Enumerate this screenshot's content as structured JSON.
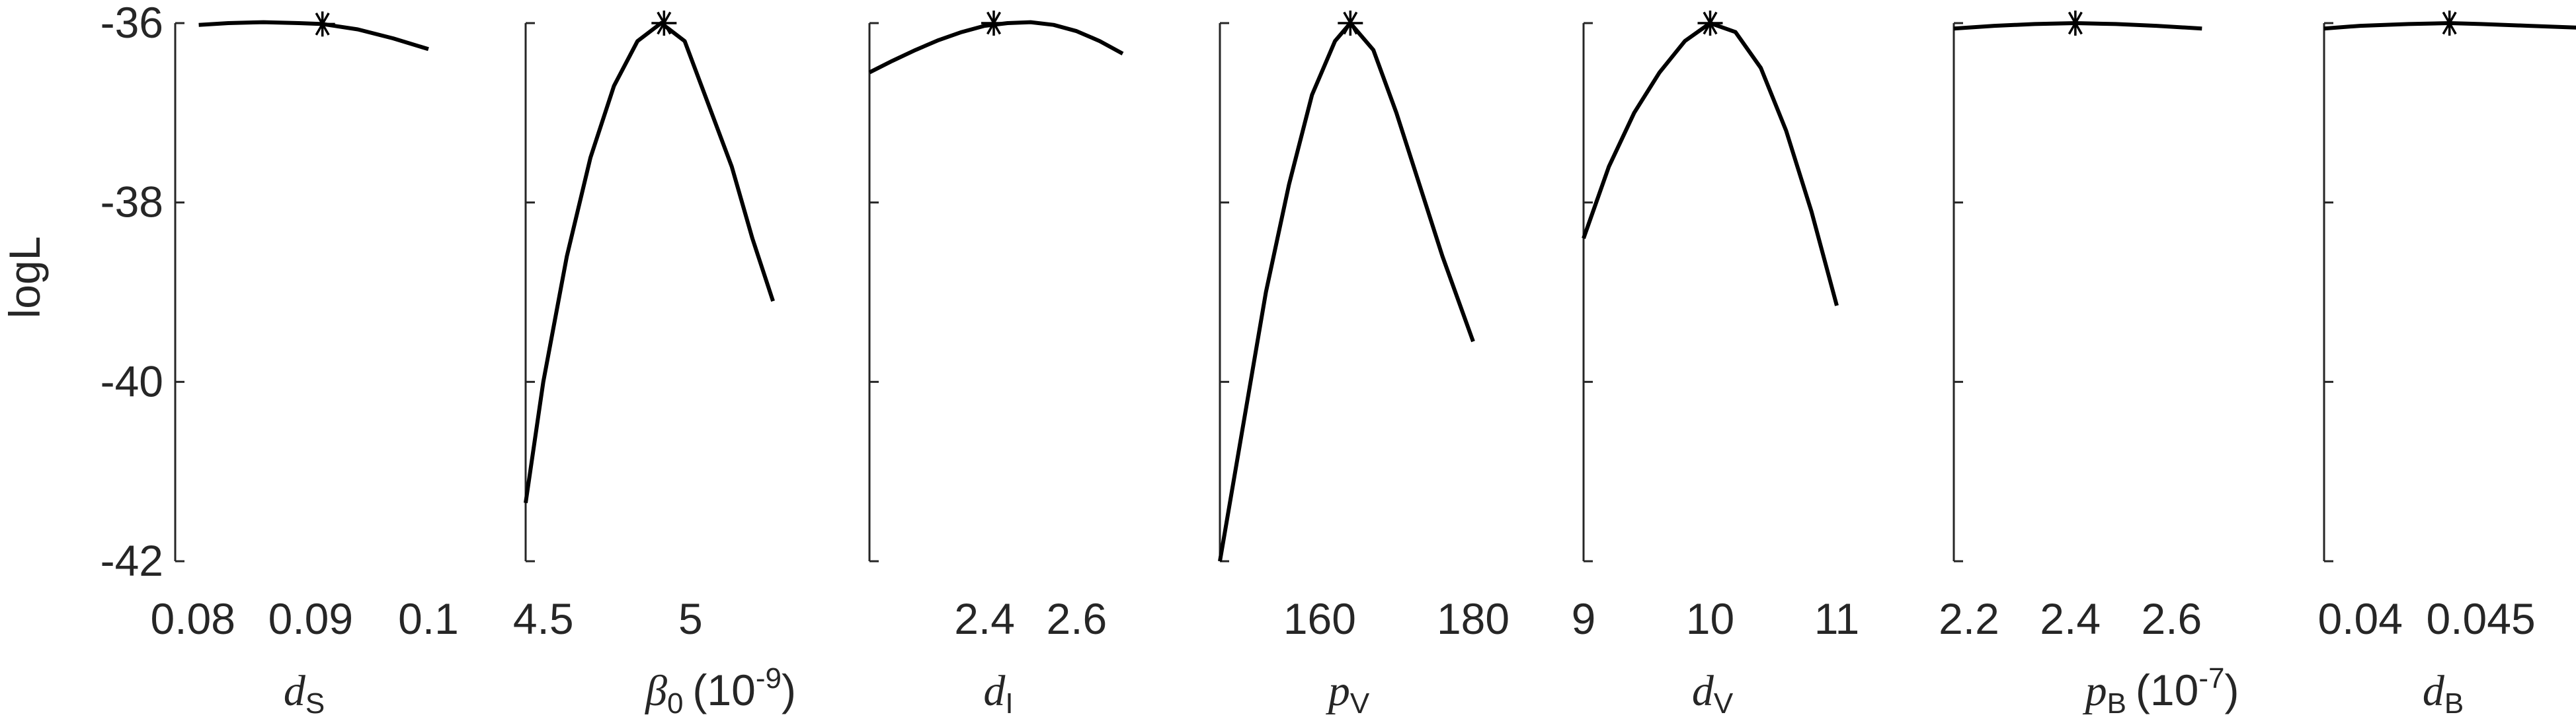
{
  "colors": {
    "line": "#000000",
    "axis": "#262626",
    "background": "#ffffff"
  },
  "chart_data": {
    "type": "line",
    "title": "",
    "ylabel": "logL",
    "ylim": [
      -42,
      -36
    ],
    "yticks": [
      -42,
      -40,
      -38,
      -36
    ],
    "yticklabels": [
      "-42",
      "-40",
      "-38",
      "-36"
    ],
    "panels": [
      {
        "name": "dS",
        "xlabel": {
          "symbol": "d",
          "sub": "S",
          "suffix": "",
          "sup": ""
        },
        "xlim": [
          0.0785,
          0.1
        ],
        "xticks": [
          0.08,
          0.09,
          0.1
        ],
        "xticklabels": [
          "0.08",
          "0.09",
          "0.1"
        ],
        "x": [
          0.0805,
          0.083,
          0.086,
          0.089,
          0.091,
          0.094,
          0.097,
          0.1
        ],
        "y": [
          -36.02,
          -36.0,
          -35.99,
          -36.0,
          -36.01,
          -36.07,
          -36.17,
          -36.29
        ],
        "best": {
          "x": 0.091,
          "y": -36.01
        }
      },
      {
        "name": "beta0",
        "xlabel": {
          "symbol": "β",
          "sub": "0",
          "suffix": "(10",
          "sup": "-9",
          "close": ")"
        },
        "xlim": [
          4.44,
          5.3
        ],
        "xticks": [
          4.5,
          5
        ],
        "xticklabels": [
          "4.5",
          "5"
        ],
        "x": [
          4.44,
          4.5,
          4.58,
          4.66,
          4.74,
          4.82,
          4.9,
          4.98,
          5.06,
          5.14,
          5.21,
          5.28
        ],
        "y": [
          -41.35,
          -40.0,
          -38.6,
          -37.5,
          -36.7,
          -36.2,
          -36.0,
          -36.2,
          -36.9,
          -37.6,
          -38.4,
          -39.1
        ],
        "best": {
          "x": 4.91,
          "y": -36.0
        }
      },
      {
        "name": "dI",
        "xlabel": {
          "symbol": "d",
          "sub": "I",
          "suffix": "",
          "sup": ""
        },
        "xlim": [
          2.15,
          2.7
        ],
        "xticks": [
          2.4,
          2.6
        ],
        "xticklabels": [
          "2.4",
          "2.6"
        ],
        "x": [
          2.15,
          2.2,
          2.25,
          2.3,
          2.35,
          2.4,
          2.45,
          2.5,
          2.55,
          2.6,
          2.65,
          2.7
        ],
        "y": [
          -36.55,
          -36.42,
          -36.3,
          -36.19,
          -36.1,
          -36.03,
          -36.0,
          -35.99,
          -36.02,
          -36.09,
          -36.2,
          -36.34
        ],
        "best": {
          "x": 2.42,
          "y": -36.0
        }
      },
      {
        "name": "pV",
        "xlabel": {
          "symbol": "p",
          "sub": "V",
          "suffix": "",
          "sup": ""
        },
        "xlim": [
          147,
          180
        ],
        "xticks": [
          160,
          180
        ],
        "xticklabels": [
          "160",
          "180"
        ],
        "x": [
          147,
          150,
          153,
          156,
          159,
          162,
          164,
          167,
          170,
          173,
          176,
          180
        ],
        "y": [
          -42.0,
          -40.5,
          -39.0,
          -37.8,
          -36.8,
          -36.2,
          -36.0,
          -36.3,
          -37.0,
          -37.8,
          -38.6,
          -39.55
        ],
        "best": {
          "x": 164,
          "y": -36.0
        }
      },
      {
        "name": "dV",
        "xlabel": {
          "symbol": "d",
          "sub": "V",
          "suffix": "",
          "sup": ""
        },
        "xlim": [
          9,
          11
        ],
        "xticks": [
          9,
          10,
          11
        ],
        "xticklabels": [
          "9",
          "10",
          "11"
        ],
        "x": [
          9.0,
          9.2,
          9.4,
          9.6,
          9.8,
          10.0,
          10.2,
          10.4,
          10.6,
          10.8,
          11.0
        ],
        "y": [
          -38.4,
          -37.6,
          -37.0,
          -36.55,
          -36.2,
          -36.0,
          -36.1,
          -36.5,
          -37.2,
          -38.1,
          -39.15
        ],
        "best": {
          "x": 10.0,
          "y": -36.0
        }
      },
      {
        "name": "pB",
        "xlabel": {
          "symbol": "p",
          "sub": "B",
          "suffix": "(10",
          "sup": "-7",
          "close": ")"
        },
        "xlim": [
          2.17,
          2.67
        ],
        "xticks": [
          2.2,
          2.4,
          2.6
        ],
        "xticklabels": [
          "2.2",
          "2.4",
          "2.6"
        ],
        "x": [
          2.17,
          2.25,
          2.33,
          2.41,
          2.49,
          2.57,
          2.66
        ],
        "y": [
          -36.06,
          -36.03,
          -36.01,
          -36.0,
          -36.01,
          -36.03,
          -36.06
        ],
        "best": {
          "x": 2.41,
          "y": -36.0
        }
      },
      {
        "name": "dB",
        "xlabel": {
          "symbol": "d",
          "sub": "B",
          "suffix": "",
          "sup": ""
        },
        "xlim": [
          0.0385,
          0.049
        ],
        "xticks": [
          0.04,
          0.045
        ],
        "xticklabels": [
          "0.04",
          "0.045"
        ],
        "x": [
          0.0385,
          0.04,
          0.042,
          0.0437,
          0.045,
          0.047,
          0.049
        ],
        "y": [
          -36.06,
          -36.03,
          -36.01,
          -36.0,
          -36.01,
          -36.03,
          -36.05
        ],
        "best": {
          "x": 0.0437,
          "y": -36.0
        }
      }
    ]
  }
}
